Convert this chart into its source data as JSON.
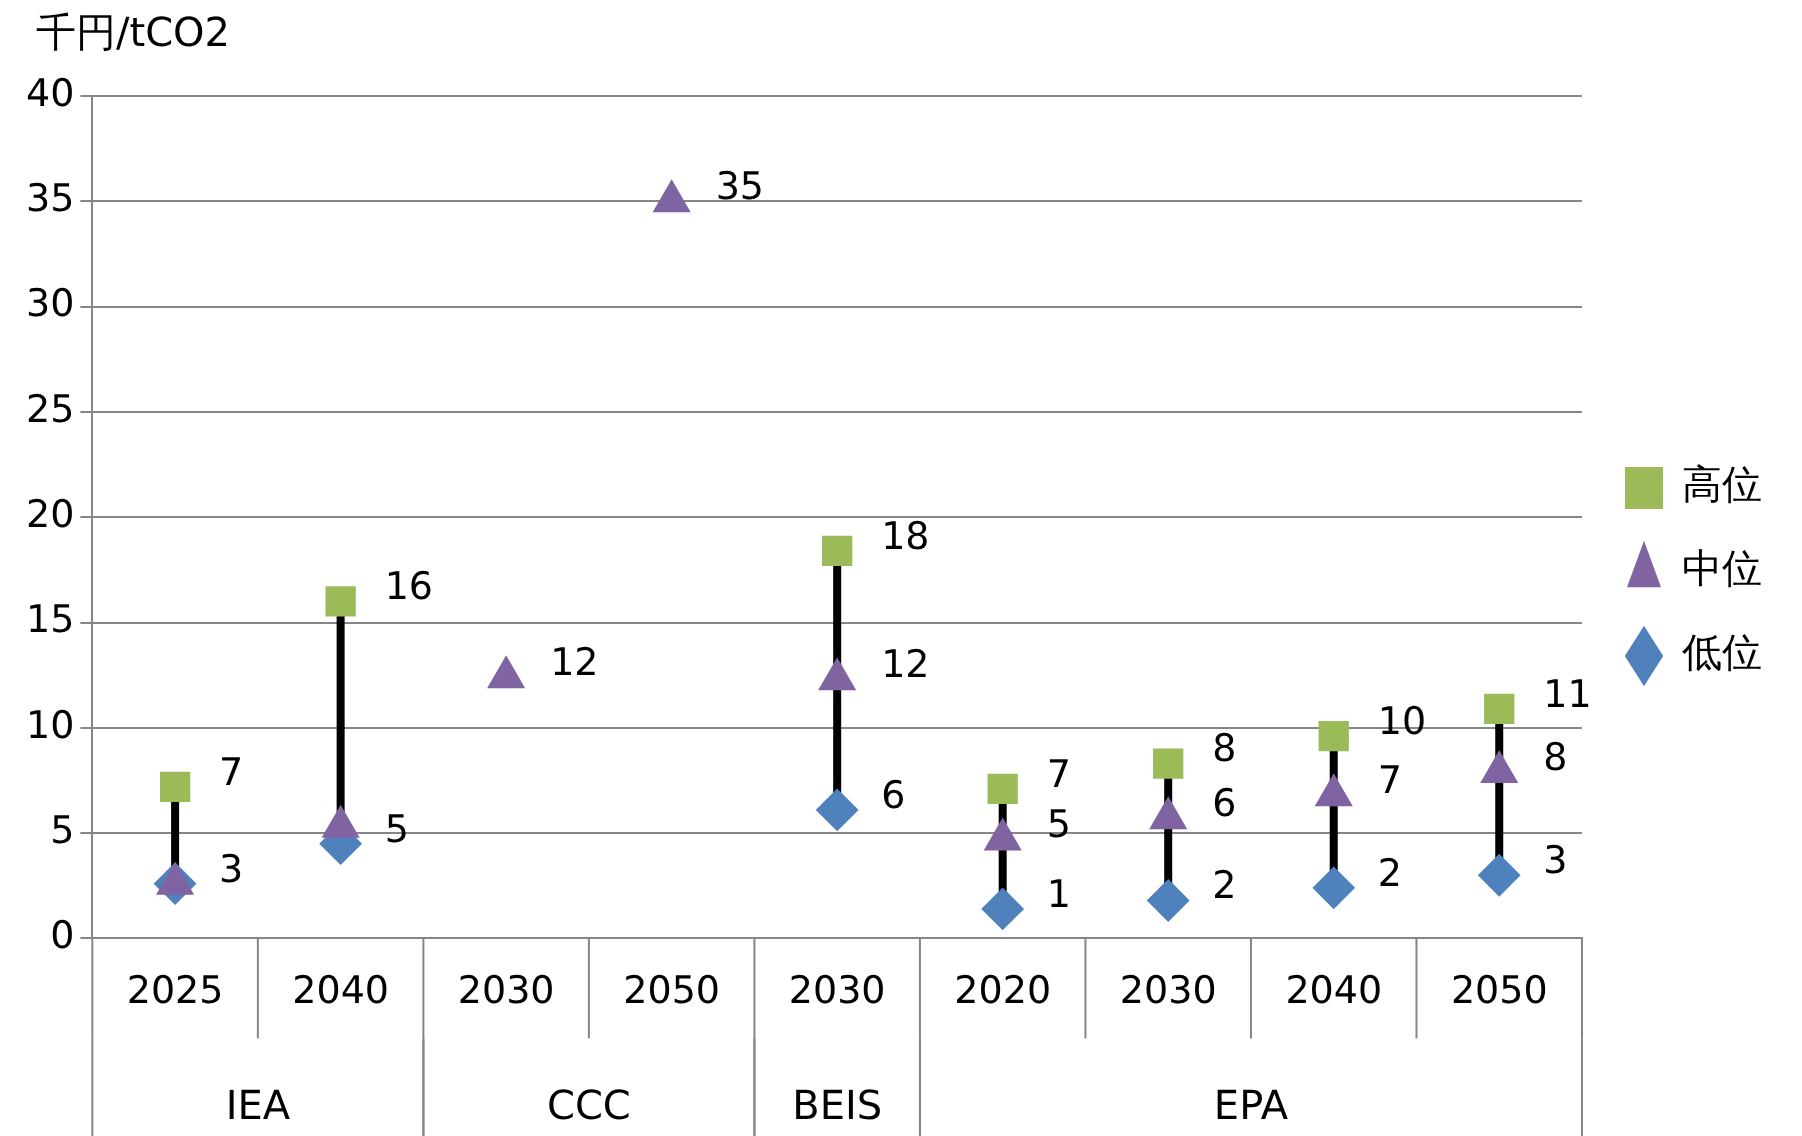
{
  "chart_data": {
    "type": "scatter",
    "ylabel": "千円/tCO2",
    "categories": [
      "2025",
      "2040",
      "2030",
      "2050",
      "2030",
      "2020",
      "2030",
      "2040",
      "2050"
    ],
    "annotations": [
      "IEA",
      "CCC",
      "BEIS",
      "EPA"
    ],
    "series": [
      {
        "name": "高位",
        "color": "#9bbb59",
        "marker": "square",
        "values": [
          7.2,
          16,
          null,
          null,
          18.4,
          7.1,
          8.3,
          9.6,
          10.9
        ],
        "value_labels": [
          "7",
          "16",
          null,
          null,
          "18",
          "7",
          "8",
          "10",
          "11"
        ]
      },
      {
        "name": "中位",
        "color": "#8064a2",
        "marker": "triangle",
        "values": [
          2.6,
          5.3,
          12.4,
          35,
          12.3,
          4.7,
          5.7,
          6.8,
          7.9
        ],
        "value_labels": [
          null,
          null,
          "12",
          "35",
          "12",
          "5",
          "6",
          "7",
          "8"
        ]
      },
      {
        "name": "低位",
        "color": "#4f81bd",
        "marker": "diamond",
        "values": [
          2.6,
          4.5,
          null,
          null,
          6.1,
          1.4,
          1.8,
          2.4,
          3
        ],
        "value_labels": [
          "3",
          "5",
          null,
          null,
          "6",
          "1",
          "2",
          "2",
          "3"
        ]
      }
    ],
    "ylim": [
      0,
      40
    ],
    "yticks": [
      0,
      5,
      10,
      15,
      20,
      25,
      30,
      35,
      40
    ],
    "grid": "y",
    "legend": "right"
  }
}
